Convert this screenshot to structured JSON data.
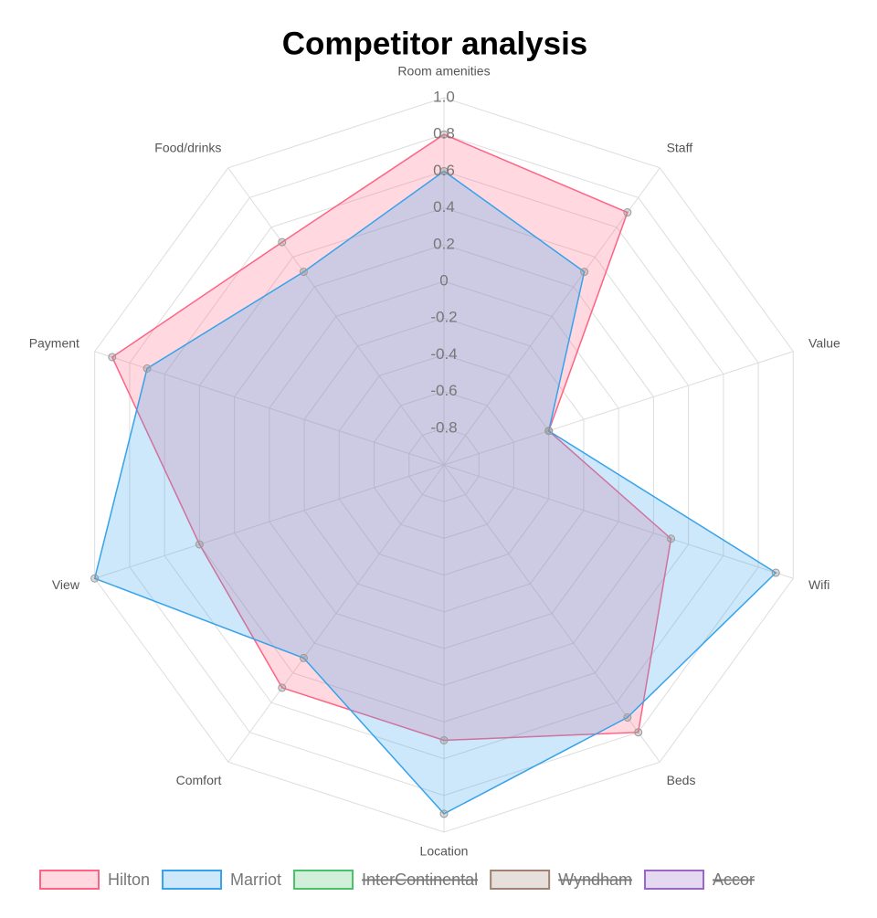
{
  "chart_data": {
    "type": "radar",
    "title": "Competitor analysis",
    "categories": [
      "Room amenities",
      "Staff",
      "Value",
      "Wifi",
      "Beds",
      "Location",
      "Comfort",
      "View",
      "Payment",
      "Food/drinks"
    ],
    "series": [
      {
        "name": "Hilton",
        "color": "#ff6384",
        "values": [
          0.8,
          0.7,
          -0.4,
          0.3,
          0.8,
          0.5,
          0.5,
          0.4,
          0.9,
          0.5
        ]
      },
      {
        "name": "Marriot",
        "color": "#36a2eb",
        "values": [
          0.6,
          0.3,
          -0.4,
          0.9,
          0.7,
          0.9,
          0.3,
          1,
          0.7,
          0.3
        ]
      },
      {
        "name": "InterContinental",
        "color": "#4bc06a",
        "hidden": true
      },
      {
        "name": "Wyndham",
        "color": "#a08070",
        "hidden": true
      },
      {
        "name": "Accor",
        "color": "#9966cc",
        "hidden": true
      }
    ],
    "rlim": [
      -1,
      1
    ],
    "rticks": [
      -0.8,
      -0.6,
      -0.4,
      -0.2,
      0,
      0.2,
      0.4,
      0.6,
      0.8,
      {
        "value": 1,
        "label": "1.0"
      }
    ],
    "grid": true,
    "legend": "bottom"
  }
}
